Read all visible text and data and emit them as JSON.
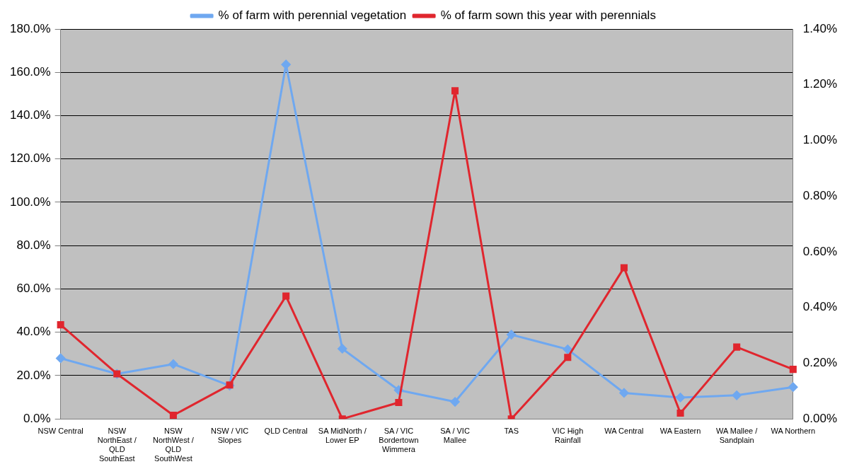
{
  "chart_data": {
    "type": "line",
    "categories": [
      "NSW Central",
      "NSW NorthEast / QLD SouthEast",
      "NSW NorthWest / QLD SouthWest",
      "NSW / VIC Slopes",
      "QLD Central",
      "SA MidNorth / Lower EP",
      "SA / VIC Bordertown Wimmera",
      "SA / VIC Mallee",
      "TAS",
      "VIC High Rainfall",
      "WA Central",
      "WA Eastern",
      "WA Mallee / Sandplain",
      "WA Northern"
    ],
    "series": [
      {
        "name": "% of farm with perennial vegetation",
        "color": "#6fa8f0",
        "marker": "diamond",
        "values": [
          28.0,
          20.8,
          25.3,
          15.4,
          163.6,
          32.4,
          13.3,
          7.9,
          38.9,
          32.1,
          12.0,
          9.9,
          10.9,
          14.7
        ]
      },
      {
        "name": "% of farm sown this year with perennials",
        "color": "#e0262e",
        "marker": "square",
        "axis": "y2",
        "values": [
          0.338,
          0.162,
          0.013,
          0.122,
          0.441,
          0,
          0.059,
          1.178,
          0,
          0.221,
          0.543,
          0.021,
          0.258,
          0.178
        ]
      }
    ],
    "ylim": [
      0,
      180
    ],
    "yticks": [
      {
        "value": 0,
        "label": "0.0%"
      },
      {
        "value": 20,
        "label": "20.0%"
      },
      {
        "value": 40,
        "label": "40.0%"
      },
      {
        "value": 60,
        "label": "60.0%"
      },
      {
        "value": 80,
        "label": "80.0%"
      },
      {
        "value": 100,
        "label": "100.0%"
      },
      {
        "value": 120,
        "label": "120.0%"
      },
      {
        "value": 140,
        "label": "140.0%"
      },
      {
        "value": 160,
        "label": "160.0%"
      },
      {
        "value": 180,
        "label": "180.0%"
      }
    ],
    "y2lim": [
      0,
      1.4
    ],
    "y2ticks": [
      {
        "value": 0,
        "label": "0.00%"
      },
      {
        "value": 0.2,
        "label": "0.20%"
      },
      {
        "value": 0.4,
        "label": "0.40%"
      },
      {
        "value": 0.6,
        "label": "0.60%"
      },
      {
        "value": 0.8,
        "label": "0.80%"
      },
      {
        "value": 1.0,
        "label": "1.00%"
      },
      {
        "value": 1.2,
        "label": "1.20%"
      },
      {
        "value": 1.4,
        "label": "1.40%"
      }
    ],
    "grid": "y",
    "legend": "top"
  }
}
